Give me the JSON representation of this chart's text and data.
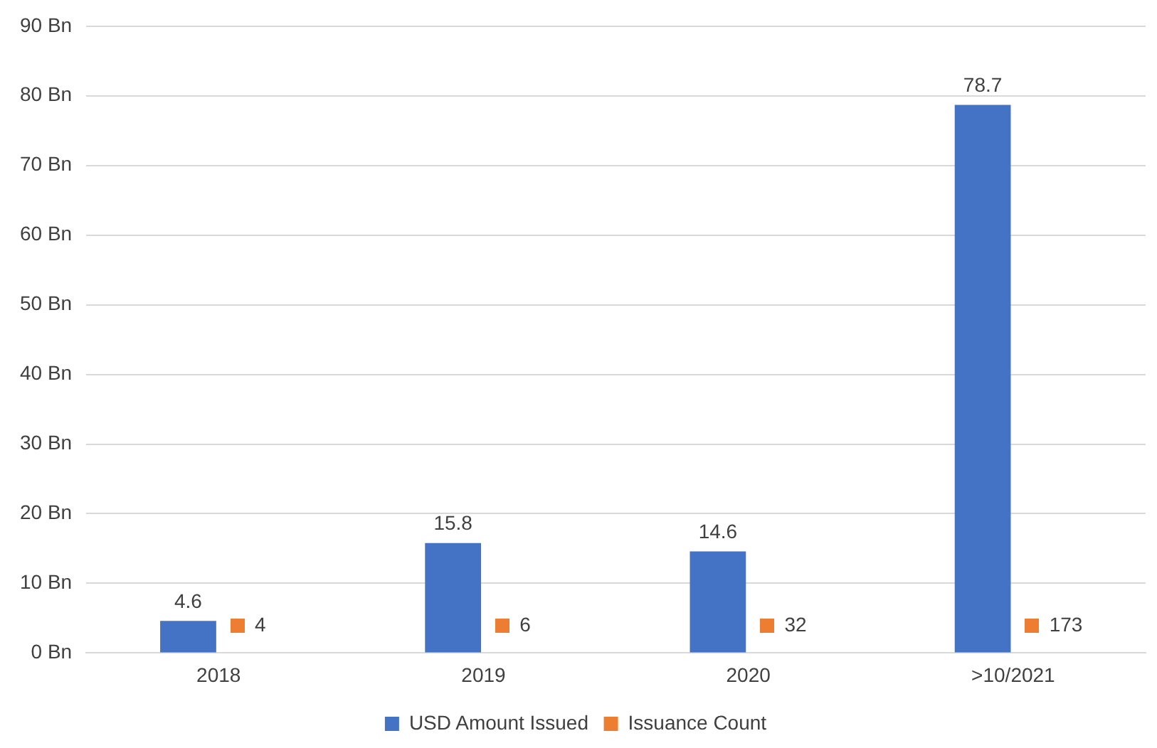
{
  "chart_data": {
    "type": "bar",
    "categories": [
      "2018",
      "2019",
      "2020",
      ">10/2021"
    ],
    "series": [
      {
        "name": "USD Amount Issued",
        "color": "#4472c4",
        "values": [
          4.6,
          15.8,
          14.6,
          78.7
        ],
        "value_labels": [
          "4.6",
          "15.8",
          "14.6",
          "78.7"
        ]
      },
      {
        "name": "Issuance Count",
        "color": "#ed7d31",
        "values": [
          null,
          null,
          null,
          null
        ],
        "value_labels": [
          "4",
          "6",
          "32",
          "173"
        ]
      }
    ],
    "ylim": [
      0,
      90
    ],
    "yticks": [
      {
        "value": 0,
        "label": "0 Bn"
      },
      {
        "value": 10,
        "label": "10 Bn"
      },
      {
        "value": 20,
        "label": "20 Bn"
      },
      {
        "value": 30,
        "label": "30 Bn"
      },
      {
        "value": 40,
        "label": "40 Bn"
      },
      {
        "value": 50,
        "label": "50 Bn"
      },
      {
        "value": 60,
        "label": "60 Bn"
      },
      {
        "value": 70,
        "label": "70 Bn"
      },
      {
        "value": 80,
        "label": "80 Bn"
      },
      {
        "value": 90,
        "label": "90 Bn"
      }
    ],
    "grid": "y",
    "legend": "bottom"
  }
}
